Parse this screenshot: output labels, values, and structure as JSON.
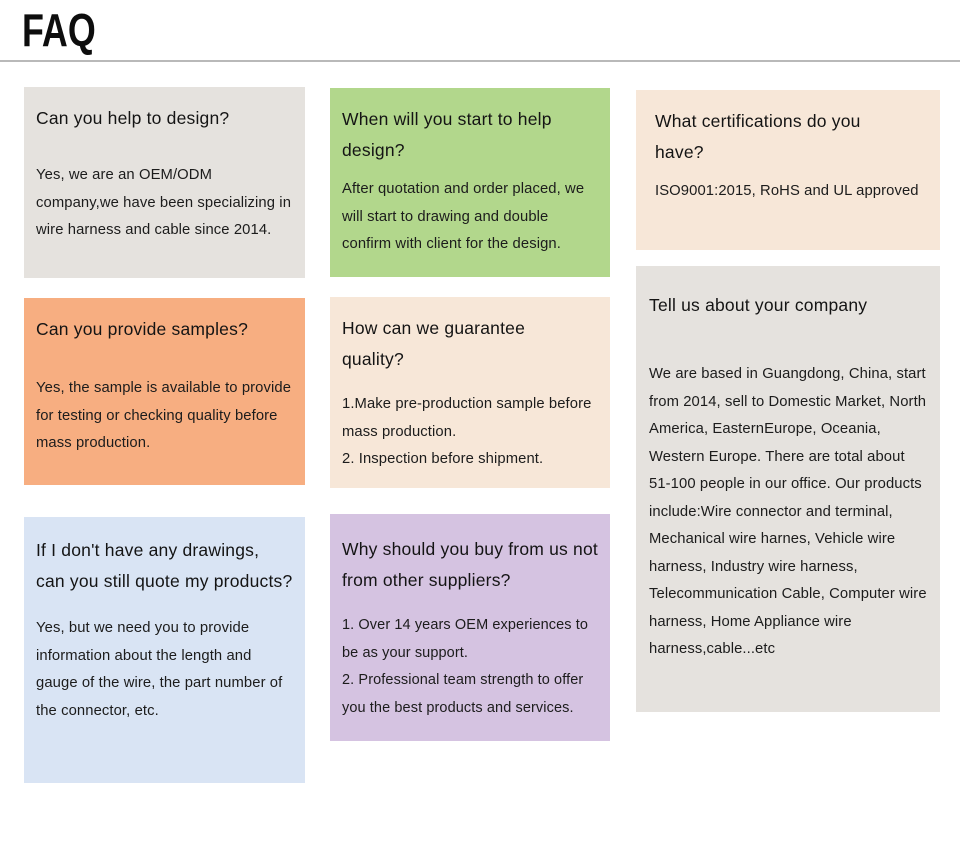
{
  "page": {
    "heading": "FAQ",
    "background_color": "#ffffff",
    "divider_color": "#b9b9b9",
    "text_color": "#141414"
  },
  "cards": [
    {
      "id": "design-help",
      "bg": "#e5e2de",
      "question": "Can you help to design?",
      "answer": [
        "Yes, we are an OEM/ODM company,we have been specializing in wire harness and cable since 2014."
      ]
    },
    {
      "id": "when-start-design",
      "bg": "#b2d78c",
      "question": "When will you start to help design?",
      "answer": [
        "After quotation and order placed, we will start to drawing and double confirm with client for the design."
      ]
    },
    {
      "id": "certifications",
      "bg": "#f7e7d8",
      "question": "What certifications do you have?",
      "answer": [
        "ISO9001:2015, RoHS and UL approved"
      ]
    },
    {
      "id": "samples",
      "bg": "#f7ae81",
      "question": "Can you provide samples?",
      "answer": [
        "Yes, the sample is available to provide for testing or checking quality before mass production."
      ]
    },
    {
      "id": "guarantee-quality",
      "bg": "#f7e7d8",
      "question": "How can we guarantee quality?",
      "answer": [
        "1.Make pre-production sample before mass production.",
        "2. Inspection before shipment."
      ]
    },
    {
      "id": "about-company",
      "bg": "#e5e2de",
      "question": "Tell us about your company",
      "answer": [
        "We are based in Guangdong, China, start from 2014, sell to Domestic Market, North America, EasternEurope, Oceania, Western Europe. There are total about 51-100 people in our office. Our products include:Wire connector and terminal, Mechanical wire harnes, Vehicle wire harness, Industry wire harness, Telecommunication Cable, Computer wire harness, Home Appliance wire harness,cable...etc"
      ]
    },
    {
      "id": "no-drawings-quote",
      "bg": "#d9e4f4",
      "question": "If I don't have any drawings, can you still quote my products?",
      "answer": [
        "Yes, but we need you to provide information about the length and gauge of the wire, the part number of the connector, etc."
      ]
    },
    {
      "id": "why-buy-from-us",
      "bg": "#d5c3e1",
      "question": "Why should you buy from us not from other suppliers?",
      "answer": [
        "1. Over 14 years OEM experiences to be as your support.",
        "2. Professional team strength to offer you the best products and services."
      ]
    }
  ]
}
